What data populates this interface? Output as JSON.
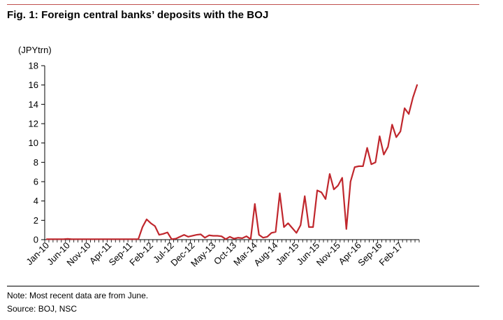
{
  "figure": {
    "title": "Fig. 1: Foreign central banks’ deposits with the BOJ",
    "note": "Note: Most recent data are from June.",
    "source": "Source: BOJ, NSC",
    "accent_color": "#c0504d",
    "line_color": "#c0272d"
  },
  "chart_data": {
    "type": "line",
    "title": "Fig. 1: Foreign central banks’ deposits with the BOJ",
    "ylabel": "(JPYtrn)",
    "xlabel": "",
    "ylim": [
      0,
      18
    ],
    "yticks": [
      0,
      2,
      4,
      6,
      8,
      10,
      12,
      14,
      16,
      18
    ],
    "grid": false,
    "legend": "none",
    "x_tick_labels": [
      "Jan-10",
      "Jun-10",
      "Nov-10",
      "Apr-11",
      "Sep-11",
      "Feb-12",
      "Jul-12",
      "Dec-12",
      "May-13",
      "Oct-13",
      "Mar-14",
      "Aug-14",
      "Jan-15",
      "Jun-15",
      "Nov-15",
      "Apr-16",
      "Sep-16",
      "Feb-17"
    ],
    "x_start": "Jan-10",
    "x_end": "Jun-17",
    "series": [
      {
        "values": [
          0.05,
          0.05,
          0.05,
          0.05,
          0.05,
          0.08,
          0.05,
          0.05,
          0.05,
          0.05,
          0.05,
          0.05,
          0.05,
          0.05,
          0.05,
          0.05,
          0.05,
          0.05,
          0.05,
          0.05,
          0.05,
          0.05,
          0.05,
          1.3,
          2.1,
          1.7,
          1.4,
          0.5,
          0.6,
          0.75,
          0.05,
          0.1,
          0.3,
          0.5,
          0.3,
          0.4,
          0.5,
          0.55,
          0.2,
          0.45,
          0.4,
          0.4,
          0.35,
          0.05,
          0.3,
          0.1,
          0.2,
          0.15,
          0.35,
          0.05,
          3.7,
          0.5,
          0.2,
          0.3,
          0.7,
          0.8,
          4.8,
          1.3,
          1.7,
          1.2,
          0.7,
          1.5,
          4.5,
          1.3,
          1.3,
          5.1,
          4.9,
          4.2,
          6.8,
          5.2,
          5.6,
          6.4,
          1.1,
          6.0,
          7.5,
          7.6,
          7.6,
          9.5,
          7.8,
          8.0,
          10.7,
          8.8,
          9.6,
          11.9,
          10.6,
          11.2,
          13.6,
          13.0,
          14.7,
          16.0
        ]
      }
    ]
  }
}
